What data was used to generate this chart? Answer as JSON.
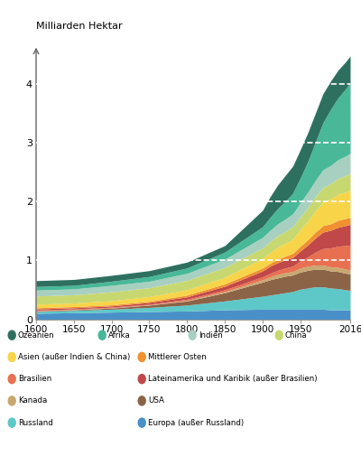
{
  "title_ylabel": "Milliarden Hektar",
  "ylim": [
    0,
    4.8
  ],
  "yticks": [
    0,
    1,
    2,
    3,
    4
  ],
  "background_color": "#ffffff",
  "years": [
    1600,
    1650,
    1700,
    1750,
    1800,
    1850,
    1900,
    1910,
    1920,
    1930,
    1940,
    1950,
    1960,
    1970,
    1980,
    1990,
    2000,
    2010,
    2016
  ],
  "series": [
    {
      "label": "Europa (außer Russland)",
      "color": "#4a90c8",
      "values": [
        0.1,
        0.11,
        0.12,
        0.13,
        0.14,
        0.16,
        0.17,
        0.17,
        0.17,
        0.17,
        0.17,
        0.17,
        0.17,
        0.17,
        0.17,
        0.16,
        0.16,
        0.16,
        0.16
      ]
    },
    {
      "label": "Russland",
      "color": "#5ec8c8",
      "values": [
        0.03,
        0.04,
        0.05,
        0.07,
        0.1,
        0.15,
        0.22,
        0.24,
        0.26,
        0.28,
        0.3,
        0.34,
        0.36,
        0.38,
        0.38,
        0.37,
        0.36,
        0.34,
        0.33
      ]
    },
    {
      "label": "USA",
      "color": "#8b6347",
      "values": [
        0.01,
        0.01,
        0.02,
        0.04,
        0.07,
        0.14,
        0.24,
        0.26,
        0.27,
        0.28,
        0.28,
        0.29,
        0.3,
        0.3,
        0.3,
        0.29,
        0.29,
        0.28,
        0.28
      ]
    },
    {
      "label": "Kanada",
      "color": "#c8a870",
      "values": [
        0.005,
        0.005,
        0.005,
        0.005,
        0.01,
        0.02,
        0.04,
        0.05,
        0.06,
        0.06,
        0.06,
        0.07,
        0.07,
        0.07,
        0.07,
        0.07,
        0.07,
        0.07,
        0.07
      ]
    },
    {
      "label": "Brasilien",
      "color": "#e87050",
      "values": [
        0.01,
        0.01,
        0.01,
        0.01,
        0.02,
        0.03,
        0.05,
        0.06,
        0.07,
        0.08,
        0.09,
        0.12,
        0.16,
        0.22,
        0.28,
        0.32,
        0.36,
        0.4,
        0.42
      ]
    },
    {
      "label": "Lateinamerika und Karibik (außer Brasilien)",
      "color": "#c04848",
      "values": [
        0.02,
        0.02,
        0.02,
        0.03,
        0.04,
        0.06,
        0.1,
        0.12,
        0.13,
        0.14,
        0.15,
        0.17,
        0.2,
        0.24,
        0.28,
        0.3,
        0.32,
        0.34,
        0.35
      ]
    },
    {
      "label": "Mittlerer Osten",
      "color": "#f09030",
      "values": [
        0.02,
        0.02,
        0.02,
        0.02,
        0.03,
        0.04,
        0.05,
        0.05,
        0.06,
        0.06,
        0.07,
        0.08,
        0.09,
        0.1,
        0.11,
        0.11,
        0.12,
        0.12,
        0.12
      ]
    },
    {
      "label": "Asien (außer Indien & China)",
      "color": "#f8d448",
      "values": [
        0.06,
        0.06,
        0.07,
        0.08,
        0.09,
        0.11,
        0.16,
        0.18,
        0.2,
        0.22,
        0.24,
        0.28,
        0.32,
        0.36,
        0.4,
        0.42,
        0.44,
        0.45,
        0.46
      ]
    },
    {
      "label": "China",
      "color": "#c8d870",
      "values": [
        0.14,
        0.14,
        0.15,
        0.15,
        0.16,
        0.17,
        0.18,
        0.19,
        0.2,
        0.2,
        0.21,
        0.22,
        0.23,
        0.24,
        0.25,
        0.26,
        0.27,
        0.28,
        0.29
      ]
    },
    {
      "label": "Indien",
      "color": "#a8d0c0",
      "values": [
        0.1,
        0.1,
        0.11,
        0.11,
        0.12,
        0.14,
        0.18,
        0.19,
        0.2,
        0.21,
        0.22,
        0.24,
        0.26,
        0.28,
        0.3,
        0.31,
        0.32,
        0.33,
        0.34
      ]
    },
    {
      "label": "Afrika",
      "color": "#48b898",
      "values": [
        0.06,
        0.06,
        0.07,
        0.08,
        0.09,
        0.12,
        0.18,
        0.22,
        0.26,
        0.3,
        0.35,
        0.42,
        0.52,
        0.65,
        0.8,
        0.95,
        1.05,
        1.14,
        1.2
      ]
    },
    {
      "label": "Ozeanien",
      "color": "#2e7060",
      "values": [
        0.1,
        0.1,
        0.1,
        0.1,
        0.1,
        0.11,
        0.28,
        0.35,
        0.4,
        0.44,
        0.46,
        0.48,
        0.49,
        0.49,
        0.49,
        0.48,
        0.47,
        0.46,
        0.45
      ]
    }
  ],
  "stacking_order": [
    "Europa (außer Russland)",
    "Russland",
    "USA",
    "Kanada",
    "Brasilien",
    "Lateinamerika und Karibik (außer Brasilien)",
    "Mittlerer Osten",
    "Asien (außer Indien & China)",
    "China",
    "Indien",
    "Afrika",
    "Ozeanien"
  ],
  "legend_rows": [
    [
      "Ozeanien",
      "Afrika",
      "Indien",
      "China"
    ],
    [
      "Asien (außer Indien & China)",
      "Mittlerer Osten"
    ],
    [
      "Brasilien",
      "Lateinamerika und Karibik (außer Brasilien)"
    ],
    [
      "Kanada",
      "USA"
    ],
    [
      "Russland",
      "Europa (außer Russland)"
    ]
  ]
}
